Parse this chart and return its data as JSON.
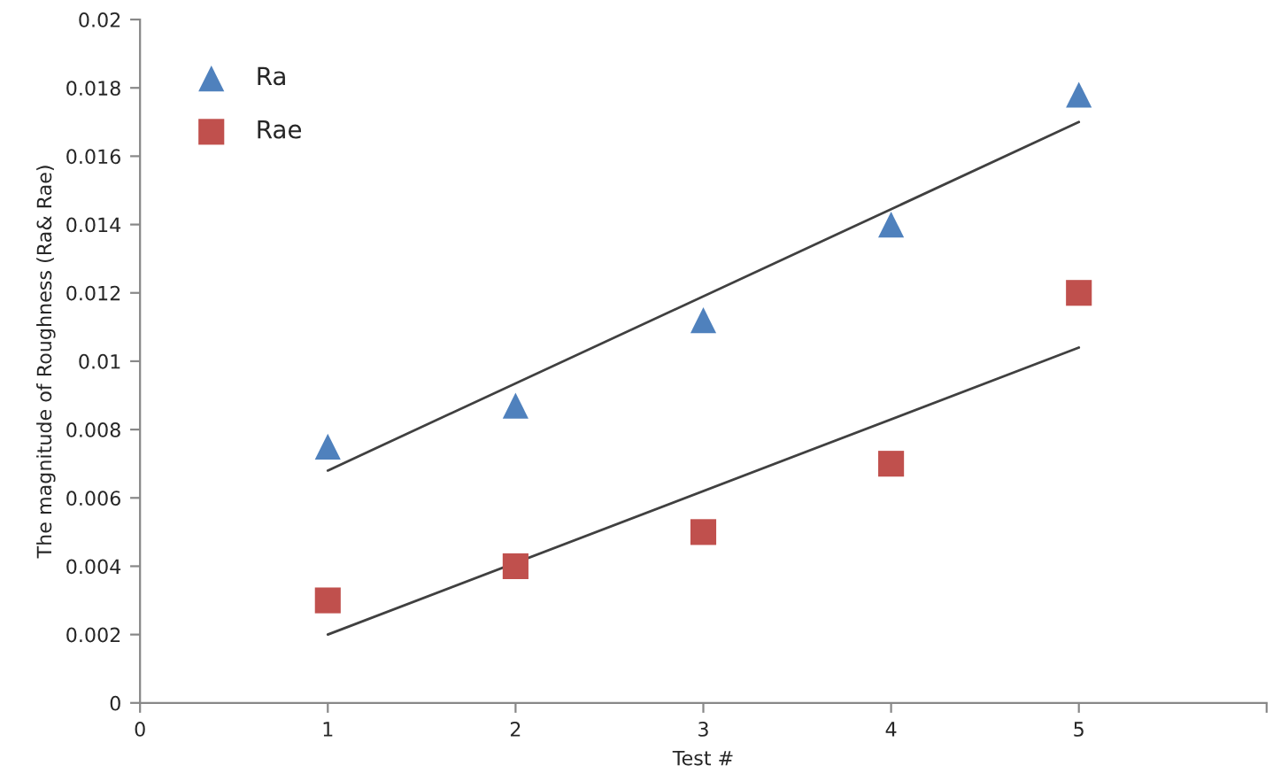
{
  "chart_data": {
    "type": "scatter",
    "xlabel": "Test #",
    "ylabel": "The magnitude of Roughness (Ra& Rae)",
    "series": [
      {
        "name": "Ra",
        "color": "#4f81bd",
        "marker": "triangle",
        "x": [
          1,
          2,
          3,
          4,
          5
        ],
        "values": [
          0.0075,
          0.0087,
          0.0112,
          0.014,
          0.0178
        ]
      },
      {
        "name": "Rae",
        "color": "#c0504d",
        "marker": "square",
        "x": [
          1,
          2,
          3,
          4,
          5
        ],
        "values": [
          0.003,
          0.004,
          0.005,
          0.007,
          0.012
        ]
      },
      {
        "type": "line",
        "color": "#404040",
        "x": [
          1,
          5
        ],
        "values": [
          0.0068,
          0.017
        ]
      },
      {
        "type": "line",
        "color": "#404040",
        "x": [
          1,
          5
        ],
        "values": [
          0.002,
          0.0104
        ]
      }
    ],
    "xlim": [
      0,
      6
    ],
    "xticks": [
      0,
      1,
      2,
      3,
      4,
      5,
      {
        "value": 6,
        "label": null
      }
    ],
    "ylim": [
      0,
      0.02
    ],
    "yticks": [
      0,
      0.002,
      0.004,
      0.006,
      0.008,
      {
        "value": 0.01,
        "label": "0.01"
      },
      0.012,
      0.014,
      0.016,
      0.018,
      {
        "value": 0.02,
        "label": "0.02"
      }
    ],
    "grid": false,
    "legend": "top left"
  }
}
